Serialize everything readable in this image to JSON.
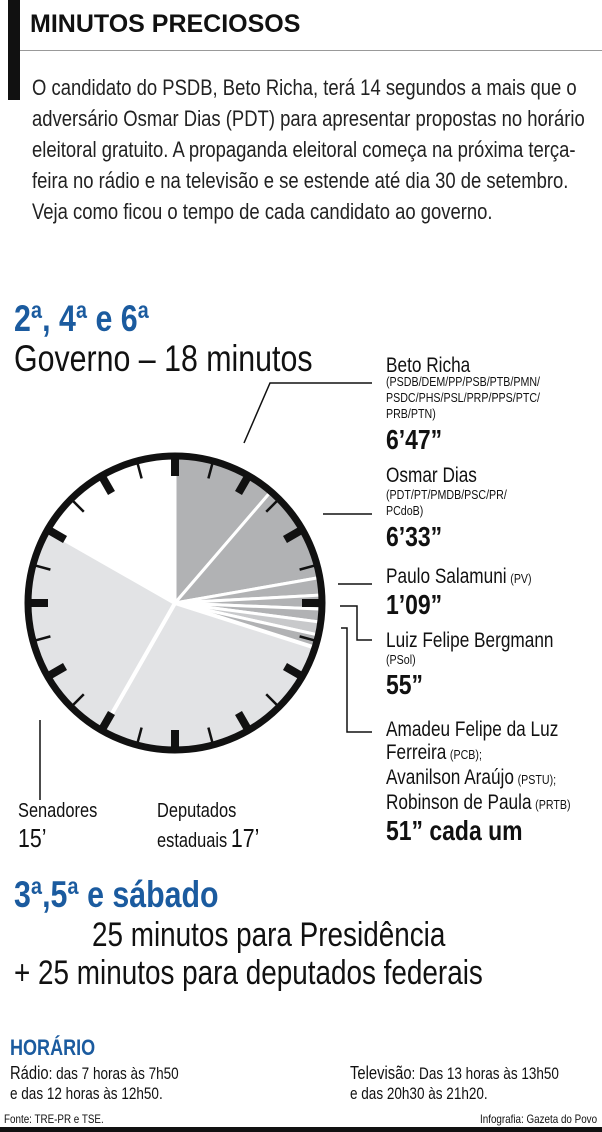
{
  "header": {
    "title": "MINUTOS PRECIOSOS"
  },
  "intro": "O candidato do PSDB, Beto Richa, terá 14 segundos a mais que o adversário Osmar Dias (PDT) para apresentar propostas no horário eleitoral gratuito. A propaganda eleitoral começa na próxima terça-feira no rádio e na televisão e se estende até dia 30 de setembro. Veja como ficou o tempo de cada candidato ao governo.",
  "section1": {
    "days": "2ª, 4ª e 6ª",
    "subtitle": "Governo – 18 minutos"
  },
  "candidates": [
    {
      "name": "Beto Richa",
      "party": "(PSDB/DEM/PP/PSB/PTB/PMN/",
      "party2": "PSDC/PHS/PSL/PRP/PPS/PTC/",
      "party3": "PRB/PTN)",
      "time": "6’47”"
    },
    {
      "name": "Osmar Dias",
      "party": "(PDT/PT/PMDB/PSC/PR/",
      "party2": "PCdoB)",
      "time": "6’33”"
    },
    {
      "name": "Paulo Salamuni",
      "party": "(PV)",
      "time": "1’09”"
    },
    {
      "name": "Luiz Felipe Bergmann",
      "party": "(PSol)",
      "time": "55”"
    },
    {
      "line1": "Amadeu Felipe da Luz",
      "line2": "Ferreira",
      "party2": "(PCB);",
      "line3": "Avanilson Araújo",
      "party3": "(PSTU);",
      "line4": "Robinson de Paula",
      "party4": "(PRTB)",
      "time": "51” cada um"
    }
  ],
  "other_labels": {
    "senadores": "Senadores",
    "senadores_time": "15’",
    "deputados": "Deputados",
    "deputados2": "estaduais",
    "deputados_time": "17’"
  },
  "section2": {
    "days": "3ª,5ª e sábado",
    "line1": "25 minutos para Presidência",
    "line2": "+ 25 minutos para deputados federais"
  },
  "schedule": {
    "title": "HORÁRIO",
    "radio_label": "Rádio",
    "radio_text": ": das 7 horas às 7h50",
    "radio_text2": "e das 12 horas às 12h50.",
    "tv_label": "Televisão",
    "tv_text": ": Das 13 horas às 13h50",
    "tv_text2": "e das 20h30 às 21h20."
  },
  "footer": {
    "source": "Fonte: TRE-PR e TSE.",
    "credit": "Infografia: Gazeta do Povo"
  },
  "chart_data": {
    "type": "pie",
    "title": "Governo – 18 minutos",
    "unit": "minutes on a 60-minute clock face",
    "categories": [
      "Beto Richa",
      "Osmar Dias",
      "Paulo Salamuni",
      "Luiz Felipe Bergmann",
      "Amadeu Felipe da Luz Ferreira",
      "Avanilson Araújo",
      "Robinson de Paula",
      "Deputados estaduais",
      "Senadores"
    ],
    "values": [
      6.783,
      6.55,
      1.15,
      0.917,
      0.85,
      0.85,
      0.85,
      17,
      15
    ],
    "colors": [
      "#b1b2b4",
      "#b1b2b4",
      "#b1b2b4",
      "#b1b2b4",
      "#b1b2b4",
      "#c8c9cb",
      "#b1b2b4",
      "#e2e3e5",
      "#e2e3e5"
    ],
    "empty_color": "#ffffff"
  },
  "colors": {
    "accent": "#1b5b9f",
    "text": "#111111"
  }
}
